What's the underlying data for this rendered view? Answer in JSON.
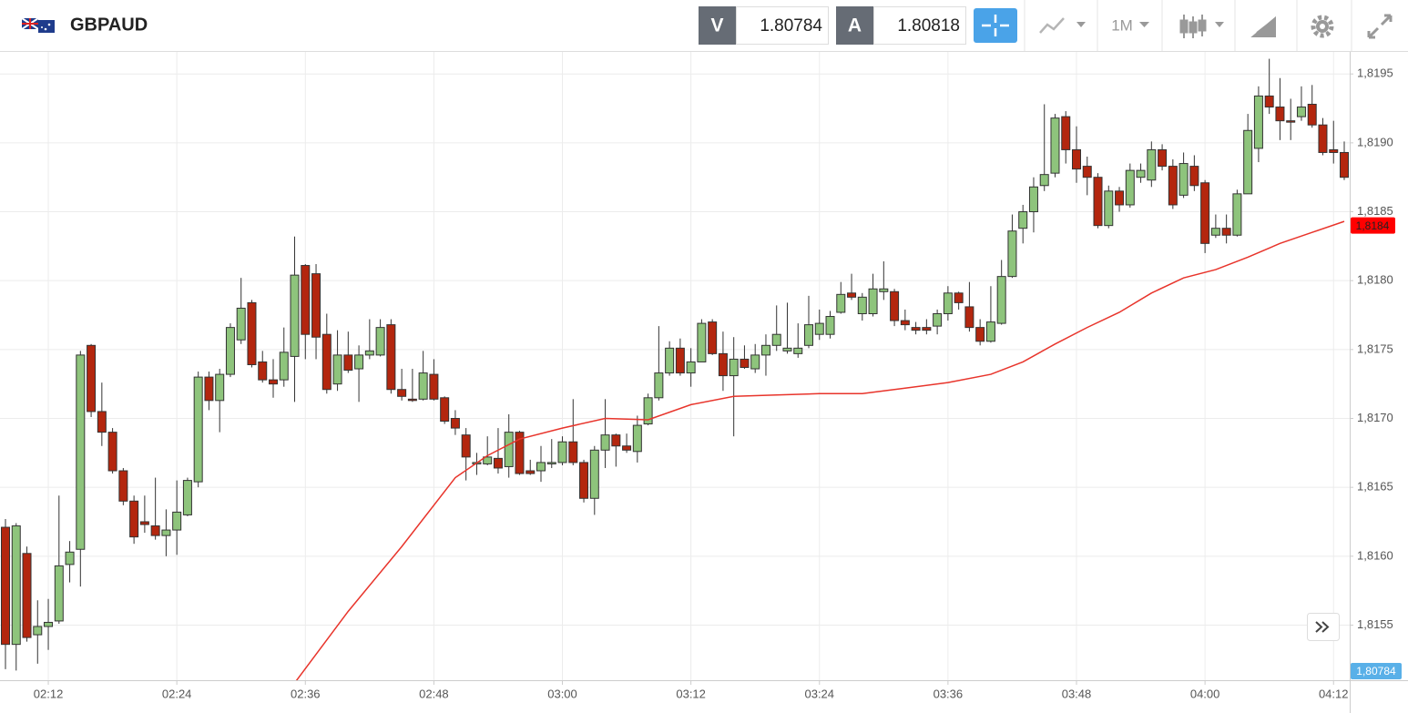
{
  "header": {
    "symbol": "GBPAUD",
    "bid_label": "V",
    "bid": "1.80784",
    "ask_label": "A",
    "ask": "1.80818",
    "timeframe": "1M"
  },
  "chart_data": {
    "type": "candlestick",
    "categories": [
      "02:08",
      "02:09",
      "02:10",
      "02:11",
      "02:12",
      "02:13",
      "02:14",
      "02:15",
      "02:16",
      "02:17",
      "02:18",
      "02:19",
      "02:20",
      "02:21",
      "02:22",
      "02:23",
      "02:24",
      "02:25",
      "02:26",
      "02:27",
      "02:28",
      "02:29",
      "02:30",
      "02:31",
      "02:32",
      "02:33",
      "02:34",
      "02:35",
      "02:36",
      "02:37",
      "02:38",
      "02:39",
      "02:40",
      "02:41",
      "02:42",
      "02:43",
      "02:44",
      "02:45",
      "02:46",
      "02:47",
      "02:48",
      "02:49",
      "02:50",
      "02:51",
      "02:52",
      "02:53",
      "02:54",
      "02:55",
      "02:56",
      "02:57",
      "02:58",
      "02:59",
      "03:00",
      "03:01",
      "03:02",
      "03:03",
      "03:04",
      "03:05",
      "03:06",
      "03:07",
      "03:08",
      "03:09",
      "03:10",
      "03:11",
      "03:12",
      "03:13",
      "03:14",
      "03:15",
      "03:16",
      "03:17",
      "03:18",
      "03:19",
      "03:20",
      "03:21",
      "03:22",
      "03:23",
      "03:24",
      "03:25",
      "03:26",
      "03:27",
      "03:28",
      "03:29",
      "03:30",
      "03:31",
      "03:32",
      "03:33",
      "03:34",
      "03:35",
      "03:36",
      "03:37",
      "03:38",
      "03:39",
      "03:40",
      "03:41",
      "03:42",
      "03:43",
      "03:44",
      "03:45",
      "03:46",
      "03:47",
      "03:48",
      "03:49",
      "03:50",
      "03:51",
      "03:52",
      "03:53",
      "03:54",
      "03:55",
      "03:56",
      "03:57",
      "03:58",
      "03:59",
      "04:00",
      "04:01",
      "04:02",
      "04:03",
      "04:04",
      "04:05",
      "04:06",
      "04:07",
      "04:08",
      "04:09",
      "04:10",
      "04:11",
      "04:12",
      "04:13"
    ],
    "open": [
      1.81621,
      1.81536,
      1.81602,
      1.81543,
      1.81549,
      1.81553,
      1.81594,
      1.81605,
      1.81753,
      1.81705,
      1.8169,
      1.81662,
      1.8164,
      1.81625,
      1.81622,
      1.81615,
      1.81619,
      1.8163,
      1.81654,
      1.8173,
      1.81713,
      1.81732,
      1.81757,
      1.81784,
      1.81741,
      1.81728,
      1.81728,
      1.81745,
      1.81811,
      1.81805,
      1.81761,
      1.81725,
      1.81746,
      1.81736,
      1.81746,
      1.81746,
      1.81768,
      1.81721,
      1.81714,
      1.81714,
      1.81732,
      1.81715,
      1.817,
      1.81688,
      1.81667,
      1.81667,
      1.81671,
      1.81665,
      1.8169,
      1.81662,
      1.81662,
      1.81667,
      1.81668,
      1.81683,
      1.81668,
      1.81642,
      1.81677,
      1.81688,
      1.8168,
      1.81676,
      1.81696,
      1.81715,
      1.81733,
      1.81751,
      1.81733,
      1.81741,
      1.8177,
      1.81747,
      1.81731,
      1.81743,
      1.81736,
      1.81746,
      1.81753,
      1.81749,
      1.81747,
      1.81753,
      1.81761,
      1.81761,
      1.81777,
      1.81791,
      1.81776,
      1.81776,
      1.81792,
      1.81792,
      1.81771,
      1.81766,
      1.81766,
      1.81767,
      1.81776,
      1.81791,
      1.81781,
      1.81766,
      1.81756,
      1.81769,
      1.81803,
      1.81838,
      1.8185,
      1.81869,
      1.81878,
      1.81919,
      1.81895,
      1.81883,
      1.81875,
      1.8184,
      1.81865,
      1.81855,
      1.81875,
      1.81873,
      1.81895,
      1.81883,
      1.81862,
      1.81883,
      1.81871,
      1.81833,
      1.81838,
      1.81833,
      1.81863,
      1.81896,
      1.81934,
      1.81926,
      1.81916,
      1.81919,
      1.81928,
      1.81913,
      1.81895,
      1.81893
    ],
    "high": [
      1.81627,
      1.81624,
      1.81607,
      1.81568,
      1.81569,
      1.81644,
      1.81611,
      1.81749,
      1.81754,
      1.81726,
      1.81693,
      1.81664,
      1.81644,
      1.81644,
      1.81657,
      1.81634,
      1.81655,
      1.81657,
      1.81734,
      1.81734,
      1.81736,
      1.81769,
      1.81802,
      1.81786,
      1.81749,
      1.81743,
      1.81766,
      1.81832,
      1.81812,
      1.81812,
      1.81776,
      1.81764,
      1.81763,
      1.81753,
      1.81772,
      1.81772,
      1.81772,
      1.81736,
      1.81736,
      1.81749,
      1.81743,
      1.81716,
      1.81706,
      1.81693,
      1.81675,
      1.81687,
      1.81693,
      1.81703,
      1.81691,
      1.8167,
      1.8168,
      1.81685,
      1.81687,
      1.81714,
      1.8167,
      1.8168,
      1.81714,
      1.81689,
      1.81689,
      1.81702,
      1.81718,
      1.81767,
      1.81756,
      1.81758,
      1.81751,
      1.81772,
      1.81772,
      1.81763,
      1.81759,
      1.81753,
      1.81754,
      1.81761,
      1.81782,
      1.81784,
      1.81769,
      1.81789,
      1.81779,
      1.81778,
      1.81799,
      1.81805,
      1.81791,
      1.81805,
      1.81814,
      1.81794,
      1.81779,
      1.8177,
      1.81772,
      1.81779,
      1.81796,
      1.81792,
      1.81799,
      1.81772,
      1.81796,
      1.81815,
      1.81848,
      1.81855,
      1.81875,
      1.81928,
      1.81921,
      1.81923,
      1.81912,
      1.8189,
      1.81878,
      1.81869,
      1.81868,
      1.81885,
      1.81885,
      1.81901,
      1.81899,
      1.81888,
      1.81893,
      1.81891,
      1.81873,
      1.81848,
      1.81848,
      1.81866,
      1.81921,
      1.81941,
      1.81961,
      1.81947,
      1.81932,
      1.81941,
      1.81942,
      1.81918,
      1.81916,
      1.81901
    ],
    "low": [
      1.81518,
      1.81517,
      1.81538,
      1.81522,
      1.81532,
      1.81551,
      1.81581,
      1.81578,
      1.81701,
      1.8168,
      1.8166,
      1.81637,
      1.81609,
      1.81617,
      1.81612,
      1.816,
      1.81601,
      1.81629,
      1.8165,
      1.81706,
      1.8169,
      1.8173,
      1.81754,
      1.81737,
      1.81726,
      1.81715,
      1.81723,
      1.81712,
      1.81743,
      1.81743,
      1.81718,
      1.8172,
      1.81733,
      1.81712,
      1.81743,
      1.81745,
      1.81718,
      1.81713,
      1.81712,
      1.81713,
      1.81713,
      1.81696,
      1.81688,
      1.81655,
      1.81659,
      1.81666,
      1.8166,
      1.81657,
      1.81659,
      1.81659,
      1.81654,
      1.81664,
      1.81666,
      1.81666,
      1.81639,
      1.8163,
      1.81664,
      1.81665,
      1.81675,
      1.81668,
      1.81695,
      1.81713,
      1.81731,
      1.81731,
      1.81723,
      1.81741,
      1.81746,
      1.8172,
      1.81687,
      1.81736,
      1.81733,
      1.81731,
      1.81749,
      1.81747,
      1.81744,
      1.81751,
      1.81757,
      1.81758,
      1.81776,
      1.81786,
      1.81771,
      1.81774,
      1.81786,
      1.81767,
      1.81764,
      1.81761,
      1.81761,
      1.81761,
      1.81771,
      1.81779,
      1.81763,
      1.81753,
      1.81755,
      1.81768,
      1.81802,
      1.81827,
      1.81835,
      1.81865,
      1.81875,
      1.81885,
      1.81871,
      1.81862,
      1.81838,
      1.81838,
      1.8185,
      1.81853,
      1.81871,
      1.81868,
      1.8188,
      1.81852,
      1.8186,
      1.81865,
      1.8182,
      1.81831,
      1.81827,
      1.81832,
      1.81863,
      1.81886,
      1.81921,
      1.81902,
      1.81902,
      1.81916,
      1.81911,
      1.81891,
      1.81885,
      1.81873
    ],
    "close": [
      1.81536,
      1.81622,
      1.81541,
      1.81549,
      1.81552,
      1.81593,
      1.81603,
      1.81746,
      1.81705,
      1.8169,
      1.81662,
      1.8164,
      1.81614,
      1.81623,
      1.81615,
      1.81619,
      1.81632,
      1.81655,
      1.8173,
      1.81713,
      1.81732,
      1.81766,
      1.8178,
      1.81739,
      1.81728,
      1.81725,
      1.81748,
      1.81804,
      1.81761,
      1.81759,
      1.81721,
      1.81746,
      1.81735,
      1.81746,
      1.81749,
      1.81766,
      1.81721,
      1.81716,
      1.81713,
      1.81733,
      1.81714,
      1.81698,
      1.81693,
      1.81672,
      1.81668,
      1.81672,
      1.81664,
      1.8169,
      1.8166,
      1.8166,
      1.81668,
      1.81668,
      1.81683,
      1.81668,
      1.81642,
      1.81677,
      1.81688,
      1.8168,
      1.81677,
      1.81695,
      1.81715,
      1.81733,
      1.81751,
      1.81733,
      1.81741,
      1.81769,
      1.81747,
      1.81731,
      1.81743,
      1.81737,
      1.81746,
      1.81753,
      1.81761,
      1.81751,
      1.81751,
      1.81768,
      1.81769,
      1.81774,
      1.8179,
      1.81788,
      1.81788,
      1.81794,
      1.81794,
      1.81771,
      1.81768,
      1.81764,
      1.81764,
      1.81776,
      1.81791,
      1.81784,
      1.81766,
      1.81756,
      1.8177,
      1.81803,
      1.81836,
      1.8185,
      1.81868,
      1.81877,
      1.81918,
      1.81895,
      1.81881,
      1.81875,
      1.8184,
      1.81865,
      1.81855,
      1.8188,
      1.8188,
      1.81895,
      1.81883,
      1.81855,
      1.81885,
      1.81869,
      1.81827,
      1.81838,
      1.81833,
      1.81863,
      1.81909,
      1.81934,
      1.81926,
      1.81916,
      1.81915,
      1.81926,
      1.81913,
      1.81893,
      1.81893,
      1.81875
    ],
    "up_color": "#8ec47c",
    "down_color": "#b3260e",
    "ylim": [
      1.8151,
      1.81966
    ],
    "yticks": [
      {
        "value": 1.8155,
        "label": "1,8155"
      },
      {
        "value": 1.816,
        "label": "1,8160"
      },
      {
        "value": 1.8165,
        "label": "1,8165"
      },
      {
        "value": 1.817,
        "label": "1,8170"
      },
      {
        "value": 1.8175,
        "label": "1,8175"
      },
      {
        "value": 1.818,
        "label": "1,8180"
      },
      {
        "value": 1.8185,
        "label": "1,8185"
      },
      {
        "value": 1.819,
        "label": "1,8190"
      },
      {
        "value": 1.8195,
        "label": "1,8195"
      }
    ],
    "grid": true,
    "moving_average": {
      "color": "#e8342b",
      "x": [
        "02:35",
        "02:40",
        "02:45",
        "02:50",
        "02:53",
        "02:56",
        "03:00",
        "03:04",
        "03:08",
        "03:12",
        "03:16",
        "03:20",
        "03:24",
        "03:28",
        "03:32",
        "03:36",
        "03:40",
        "03:43",
        "03:46",
        "03:49",
        "03:52",
        "03:55",
        "03:58",
        "04:01",
        "04:04",
        "04:07",
        "04:10",
        "04:13"
      ],
      "values": [
        1.81508,
        1.8156,
        1.81607,
        1.81657,
        1.81673,
        1.81685,
        1.81693,
        1.817,
        1.81699,
        1.8171,
        1.81716,
        1.81717,
        1.81718,
        1.81718,
        1.81722,
        1.81726,
        1.81732,
        1.81741,
        1.81754,
        1.81766,
        1.81777,
        1.81791,
        1.81802,
        1.81808,
        1.81817,
        1.81827,
        1.81835,
        1.81843
      ],
      "last_label": {
        "value": 1.8184,
        "label": "1,8184"
      }
    },
    "price_label": {
      "value": 1.80784,
      "label": "1,80784"
    }
  }
}
